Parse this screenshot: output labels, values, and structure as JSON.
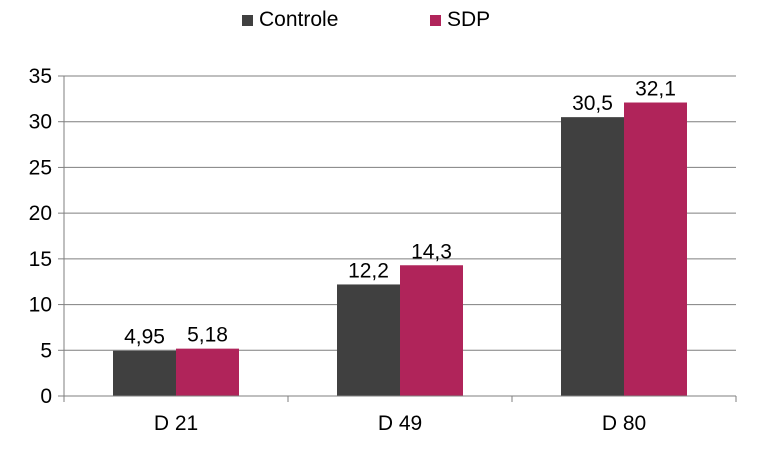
{
  "chart_data": {
    "type": "bar",
    "categories": [
      "D 21",
      "D 49",
      "D 80"
    ],
    "series": [
      {
        "name": "Controle",
        "values": [
          4.95,
          12.2,
          30.5
        ],
        "labels": [
          "4,95",
          "12,2",
          "30,5"
        ],
        "color": "#404040"
      },
      {
        "name": "SDP",
        "values": [
          5.18,
          14.3,
          32.1
        ],
        "labels": [
          "5,18",
          "14,3",
          "32,1"
        ],
        "color": "#B0245A"
      }
    ],
    "ylim": [
      0,
      35
    ],
    "yticks": [
      0,
      5,
      10,
      15,
      20,
      25,
      30,
      35
    ],
    "grid": true,
    "legend_position": "top"
  }
}
